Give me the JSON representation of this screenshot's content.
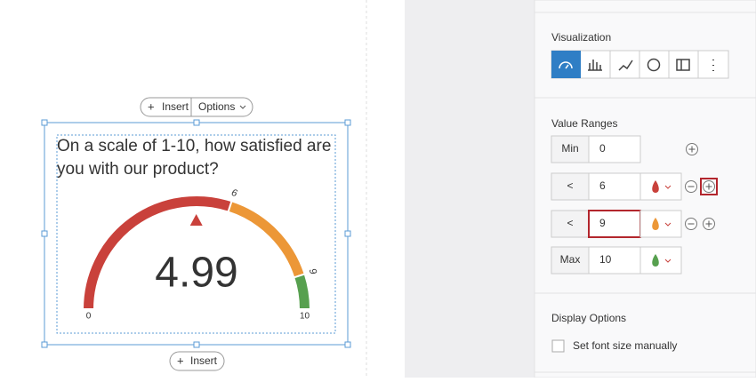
{
  "top_toolbar": {
    "insert": "Insert",
    "options": "Options"
  },
  "question": [
    "On a scale of 1-10, how satisfied are",
    "you with our product?"
  ],
  "gauge": {
    "value": 4.99,
    "min": 0,
    "max": 10,
    "thresholds": [
      6,
      9
    ],
    "colors": [
      "#c9413b",
      "#ec9737",
      "#57a04f"
    ]
  },
  "bottom_toolbar": {
    "insert": "Insert"
  },
  "panel": {
    "visualization": "Visualization",
    "value_ranges": "Value Ranges",
    "min_label": "Min",
    "less_label": "<",
    "max_label": "Max",
    "display_options": "Display Options",
    "font_size_checkbox": "Set font size manually"
  }
}
